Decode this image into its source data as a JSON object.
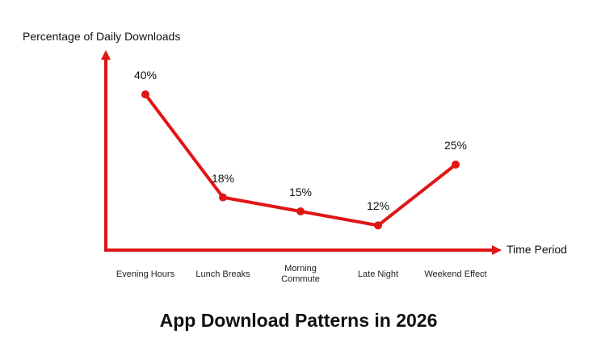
{
  "chart_data": {
    "type": "line",
    "title": "App Download Patterns in 2026",
    "ylabel": "Percentage of Daily Downloads",
    "xlabel": "Time Period",
    "categories": [
      "Evening Hours",
      "Lunch Breaks",
      "Morning Commute",
      "Late Night",
      "Weekend Effect"
    ],
    "values": [
      40,
      18,
      15,
      12,
      25
    ],
    "value_labels": [
      "40%",
      "18%",
      "15%",
      "12%",
      "25%"
    ],
    "unit": "%",
    "grid": false,
    "color": "#e01515"
  }
}
